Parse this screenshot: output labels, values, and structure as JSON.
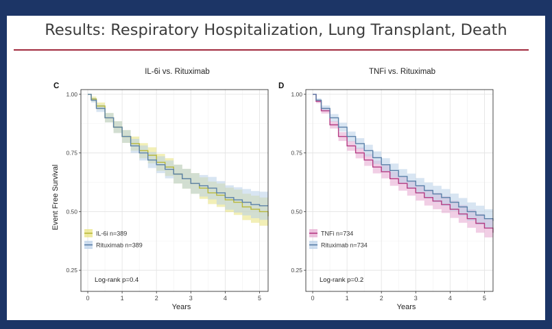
{
  "slide": {
    "title": "Results: Respiratory Hospitalization, Lung Transplant, Death"
  },
  "chart_data": [
    {
      "type": "line",
      "panel_label": "C",
      "title": "IL-6i vs. Rituximab",
      "xlabel": "Years",
      "ylabel": "Event Free Survival",
      "xlim": [
        -0.2,
        5.25
      ],
      "ylim": [
        0.16,
        1.02
      ],
      "xticks": [
        0,
        1,
        2,
        3,
        4,
        5
      ],
      "yticks": [
        0.25,
        0.5,
        0.75,
        1.0
      ],
      "ytick_labels": [
        "0.25",
        "0.50",
        "0.75",
        "1.00"
      ],
      "grid": true,
      "legend_position": "bottom-left",
      "annotation": "Log-rank p=0.4",
      "series": [
        {
          "name": "IL-6i n=389",
          "color": "#b8b83a",
          "band_color": "#e8e27a",
          "x": [
            0,
            0.1,
            0.25,
            0.5,
            0.75,
            1.0,
            1.25,
            1.5,
            1.75,
            2.0,
            2.25,
            2.5,
            2.75,
            3.0,
            3.25,
            3.5,
            3.75,
            4.0,
            4.25,
            4.5,
            4.75,
            5.0,
            5.25
          ],
          "y": [
            1.0,
            0.98,
            0.95,
            0.9,
            0.86,
            0.82,
            0.79,
            0.76,
            0.74,
            0.71,
            0.69,
            0.66,
            0.64,
            0.62,
            0.6,
            0.58,
            0.57,
            0.55,
            0.54,
            0.52,
            0.51,
            0.5,
            0.48
          ],
          "ci_halfwidth": [
            0.0,
            0.01,
            0.015,
            0.02,
            0.025,
            0.027,
            0.03,
            0.032,
            0.034,
            0.036,
            0.038,
            0.04,
            0.042,
            0.044,
            0.046,
            0.048,
            0.05,
            0.052,
            0.054,
            0.056,
            0.058,
            0.06,
            0.06
          ]
        },
        {
          "name": "Rituximab n=389",
          "color": "#5a80a8",
          "band_color": "#b8cfe8",
          "x": [
            0,
            0.1,
            0.25,
            0.5,
            0.75,
            1.0,
            1.25,
            1.5,
            1.75,
            2.0,
            2.25,
            2.5,
            2.75,
            3.0,
            3.25,
            3.5,
            3.75,
            4.0,
            4.25,
            4.5,
            4.75,
            5.0,
            5.25
          ],
          "y": [
            1.0,
            0.975,
            0.94,
            0.9,
            0.86,
            0.82,
            0.78,
            0.75,
            0.72,
            0.7,
            0.68,
            0.66,
            0.64,
            0.62,
            0.61,
            0.6,
            0.58,
            0.56,
            0.55,
            0.54,
            0.53,
            0.525,
            0.525
          ],
          "ci_halfwidth": [
            0.0,
            0.01,
            0.015,
            0.02,
            0.025,
            0.027,
            0.03,
            0.032,
            0.034,
            0.036,
            0.038,
            0.04,
            0.042,
            0.044,
            0.046,
            0.048,
            0.05,
            0.052,
            0.054,
            0.056,
            0.058,
            0.06,
            0.06
          ]
        }
      ]
    },
    {
      "type": "line",
      "panel_label": "D",
      "title": "TNFi vs. Rituximab",
      "xlabel": "Years",
      "ylabel": "",
      "xlim": [
        -0.2,
        5.25
      ],
      "ylim": [
        0.16,
        1.02
      ],
      "xticks": [
        0,
        1,
        2,
        3,
        4,
        5
      ],
      "yticks": [
        0.25,
        0.5,
        0.75,
        1.0
      ],
      "ytick_labels": [
        "0.25",
        "0.50",
        "0.75",
        "1.00"
      ],
      "grid": true,
      "legend_position": "bottom-left",
      "annotation": "Log-rank p=0.2",
      "series": [
        {
          "name": "TNFi n=734",
          "color": "#b43a82",
          "band_color": "#e6a6cf",
          "x": [
            0,
            0.1,
            0.25,
            0.5,
            0.75,
            1.0,
            1.25,
            1.5,
            1.75,
            2.0,
            2.25,
            2.5,
            2.75,
            3.0,
            3.25,
            3.5,
            3.75,
            4.0,
            4.25,
            4.5,
            4.75,
            5.0,
            5.25
          ],
          "y": [
            1.0,
            0.97,
            0.93,
            0.87,
            0.82,
            0.78,
            0.75,
            0.72,
            0.69,
            0.67,
            0.64,
            0.62,
            0.6,
            0.58,
            0.56,
            0.545,
            0.53,
            0.51,
            0.49,
            0.47,
            0.45,
            0.43,
            0.41
          ],
          "ci_halfwidth": [
            0.0,
            0.008,
            0.012,
            0.016,
            0.019,
            0.021,
            0.023,
            0.025,
            0.027,
            0.028,
            0.03,
            0.031,
            0.032,
            0.033,
            0.034,
            0.035,
            0.036,
            0.037,
            0.038,
            0.039,
            0.04,
            0.04,
            0.04
          ]
        },
        {
          "name": "Rituximab n=734",
          "color": "#5a80a8",
          "band_color": "#b8cfe8",
          "x": [
            0,
            0.1,
            0.25,
            0.5,
            0.75,
            1.0,
            1.25,
            1.5,
            1.75,
            2.0,
            2.25,
            2.5,
            2.75,
            3.0,
            3.25,
            3.5,
            3.75,
            4.0,
            4.25,
            4.5,
            4.75,
            5.0,
            5.25
          ],
          "y": [
            1.0,
            0.975,
            0.94,
            0.9,
            0.86,
            0.82,
            0.79,
            0.76,
            0.73,
            0.7,
            0.675,
            0.65,
            0.63,
            0.61,
            0.59,
            0.575,
            0.56,
            0.54,
            0.52,
            0.5,
            0.485,
            0.47,
            0.46
          ],
          "ci_halfwidth": [
            0.0,
            0.008,
            0.012,
            0.016,
            0.019,
            0.021,
            0.023,
            0.025,
            0.027,
            0.028,
            0.03,
            0.031,
            0.032,
            0.033,
            0.034,
            0.035,
            0.036,
            0.037,
            0.038,
            0.039,
            0.04,
            0.04,
            0.04
          ]
        }
      ]
    }
  ]
}
